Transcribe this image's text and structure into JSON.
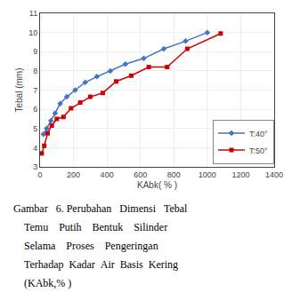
{
  "chart_data": {
    "type": "line",
    "x_label": "KAbk( % )",
    "y_label": "Tebal (mm)",
    "xlim": [
      0,
      1400
    ],
    "ylim": [
      3,
      11
    ],
    "xticks": [
      0,
      200,
      400,
      600,
      800,
      1000,
      1200,
      1400
    ],
    "yticks": [
      3,
      4,
      5,
      6,
      7,
      8,
      9,
      10,
      11
    ],
    "grid": true,
    "legend": "lower right",
    "series": [
      {
        "name": "T:40°",
        "color": "#4472C4",
        "marker": "diamond",
        "x": [
          20,
          40,
          65,
          90,
          120,
          160,
          210,
          270,
          340,
          420,
          510,
          620,
          740,
          870,
          1000
        ],
        "values": [
          4.7,
          5.0,
          5.4,
          5.8,
          6.3,
          6.65,
          7.0,
          7.4,
          7.7,
          8.0,
          8.35,
          8.65,
          9.15,
          9.55,
          10.0
        ]
      },
      {
        "name": "T:50°",
        "color": "#CC0000",
        "marker": "square",
        "x": [
          10,
          25,
          45,
          70,
          100,
          140,
          185,
          240,
          300,
          375,
          455,
          545,
          650,
          760,
          880,
          1080
        ],
        "values": [
          3.7,
          4.1,
          4.75,
          5.15,
          5.5,
          5.6,
          6.05,
          6.35,
          6.65,
          6.85,
          7.45,
          7.75,
          8.2,
          8.2,
          9.15,
          9.95
        ]
      }
    ],
    "annotations": [
      "Gambar   6. Perubahan   Dimensi   Tebal",
      "    Temu    Putih    Bentuk    Silinder",
      "    Selama    Proses    Pengeringan",
      "    Terhadap  Kadar  Air  Basis  Kering",
      "    (KAbk,% )"
    ]
  }
}
